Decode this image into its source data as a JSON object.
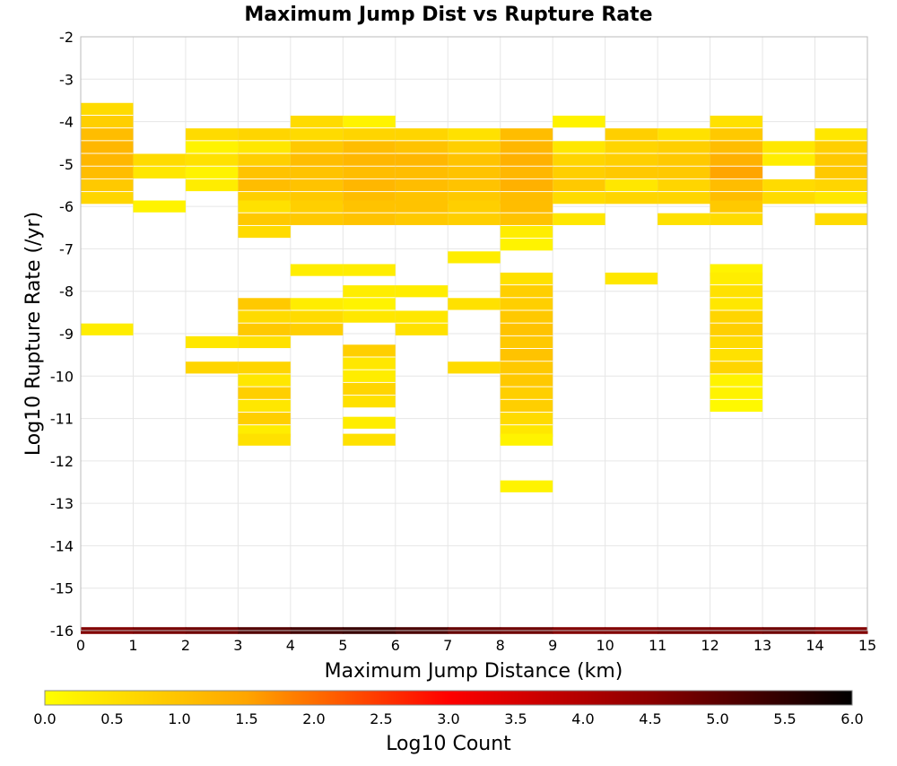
{
  "chart_data": {
    "type": "heatmap",
    "title": "Maximum Jump Dist vs Rupture Rate",
    "xlabel": "Maximum Jump Distance (km)",
    "ylabel": "Log10 Rupture Rate (/yr)",
    "xlim": [
      0,
      15
    ],
    "ylim": [
      -16,
      -2
    ],
    "x_ticks": [
      "0",
      "1",
      "2",
      "3",
      "4",
      "5",
      "6",
      "7",
      "8",
      "9",
      "10",
      "11",
      "12",
      "13",
      "14",
      "15"
    ],
    "y_ticks": [
      "-2",
      "-3",
      "-4",
      "-5",
      "-6",
      "-7",
      "-8",
      "-9",
      "-10",
      "-11",
      "-12",
      "-13",
      "-14",
      "-15",
      "-16"
    ],
    "colorbar": {
      "label": "Log10 Count",
      "range": [
        0,
        6
      ],
      "ticks": [
        "0.0",
        "0.5",
        "1.0",
        "1.5",
        "2.0",
        "2.5",
        "3.0",
        "3.5",
        "4.0",
        "4.5",
        "5.0",
        "5.5",
        "6.0"
      ],
      "colors": [
        "#ffff00",
        "#ffa500",
        "#ff0000",
        "#8b0000",
        "#000000"
      ]
    },
    "grid": true,
    "bin_width_x": 1,
    "bin_height_y": 0.28,
    "cells": [
      [
        0,
        -3.7,
        0.6
      ],
      [
        0,
        -4.0,
        0.8
      ],
      [
        0,
        -4.3,
        1.1
      ],
      [
        0,
        -4.6,
        1.2
      ],
      [
        0,
        -4.9,
        1.2
      ],
      [
        0,
        -5.2,
        1.1
      ],
      [
        0,
        -5.5,
        0.9
      ],
      [
        0,
        -5.8,
        0.7
      ],
      [
        0,
        -8.9,
        0.3
      ],
      [
        1,
        -4.9,
        0.6
      ],
      [
        1,
        -5.2,
        0.4
      ],
      [
        1,
        -6.0,
        0.2
      ],
      [
        2,
        -4.3,
        0.6
      ],
      [
        2,
        -4.6,
        0.2
      ],
      [
        2,
        -4.9,
        0.5
      ],
      [
        2,
        -5.2,
        0.2
      ],
      [
        2,
        -5.5,
        0.3
      ],
      [
        2,
        -9.2,
        0.4
      ],
      [
        2,
        -9.8,
        0.7
      ],
      [
        3,
        -4.3,
        0.7
      ],
      [
        3,
        -4.6,
        0.4
      ],
      [
        3,
        -4.9,
        0.8
      ],
      [
        3,
        -5.2,
        1.0
      ],
      [
        3,
        -5.5,
        1.1
      ],
      [
        3,
        -5.8,
        0.8
      ],
      [
        3,
        -6.0,
        0.5
      ],
      [
        3,
        -6.3,
        0.9
      ],
      [
        3,
        -6.6,
        0.6
      ],
      [
        3,
        -8.3,
        0.9
      ],
      [
        3,
        -8.6,
        0.6
      ],
      [
        3,
        -8.9,
        0.9
      ],
      [
        3,
        -9.2,
        0.5
      ],
      [
        3,
        -9.8,
        0.7
      ],
      [
        3,
        -10.1,
        0.4
      ],
      [
        3,
        -10.4,
        0.8
      ],
      [
        3,
        -10.7,
        0.4
      ],
      [
        3,
        -11.0,
        0.8
      ],
      [
        3,
        -11.3,
        0.3
      ],
      [
        3,
        -11.5,
        0.5
      ],
      [
        4,
        -4.0,
        0.6
      ],
      [
        4,
        -4.3,
        0.6
      ],
      [
        4,
        -4.6,
        0.9
      ],
      [
        4,
        -4.9,
        1.1
      ],
      [
        4,
        -5.2,
        1.0
      ],
      [
        4,
        -5.5,
        1.0
      ],
      [
        4,
        -5.8,
        0.9
      ],
      [
        4,
        -6.0,
        0.8
      ],
      [
        4,
        -6.3,
        0.9
      ],
      [
        4,
        -7.5,
        0.3
      ],
      [
        4,
        -8.3,
        0.3
      ],
      [
        4,
        -8.6,
        0.6
      ],
      [
        4,
        -8.9,
        0.8
      ],
      [
        5,
        -4.0,
        0.2
      ],
      [
        5,
        -4.3,
        0.7
      ],
      [
        5,
        -4.6,
        1.1
      ],
      [
        5,
        -4.9,
        1.2
      ],
      [
        5,
        -5.2,
        1.1
      ],
      [
        5,
        -5.5,
        1.2
      ],
      [
        5,
        -5.8,
        1.1
      ],
      [
        5,
        -6.0,
        1.0
      ],
      [
        5,
        -6.3,
        1.0
      ],
      [
        5,
        -7.5,
        0.3
      ],
      [
        5,
        -8.0,
        0.3
      ],
      [
        5,
        -8.3,
        0.2
      ],
      [
        5,
        -8.6,
        0.4
      ],
      [
        5,
        -9.4,
        0.8
      ],
      [
        5,
        -9.7,
        0.4
      ],
      [
        5,
        -10.0,
        0.3
      ],
      [
        5,
        -10.3,
        0.7
      ],
      [
        5,
        -10.6,
        0.5
      ],
      [
        5,
        -11.1,
        0.3
      ],
      [
        5,
        -11.5,
        0.5
      ],
      [
        6,
        -4.3,
        0.7
      ],
      [
        6,
        -4.6,
        1.0
      ],
      [
        6,
        -4.9,
        1.2
      ],
      [
        6,
        -5.2,
        1.1
      ],
      [
        6,
        -5.5,
        1.1
      ],
      [
        6,
        -5.8,
        1.0
      ],
      [
        6,
        -6.0,
        1.0
      ],
      [
        6,
        -6.3,
        0.9
      ],
      [
        6,
        -8.0,
        0.3
      ],
      [
        6,
        -8.6,
        0.4
      ],
      [
        6,
        -8.9,
        0.5
      ],
      [
        7,
        -4.3,
        0.5
      ],
      [
        7,
        -4.6,
        0.8
      ],
      [
        7,
        -4.9,
        1.0
      ],
      [
        7,
        -5.2,
        1.0
      ],
      [
        7,
        -5.5,
        1.0
      ],
      [
        7,
        -5.8,
        0.9
      ],
      [
        7,
        -6.0,
        0.8
      ],
      [
        7,
        -6.3,
        0.8
      ],
      [
        7,
        -7.2,
        0.3
      ],
      [
        7,
        -8.3,
        0.5
      ],
      [
        7,
        -9.8,
        0.6
      ],
      [
        8,
        -4.3,
        1.1
      ],
      [
        8,
        -4.6,
        1.2
      ],
      [
        8,
        -4.9,
        1.3
      ],
      [
        8,
        -5.2,
        1.2
      ],
      [
        8,
        -5.5,
        1.3
      ],
      [
        8,
        -5.8,
        1.1
      ],
      [
        8,
        -6.0,
        1.1
      ],
      [
        8,
        -6.3,
        1.0
      ],
      [
        8,
        -6.6,
        0.3
      ],
      [
        8,
        -6.9,
        0.2
      ],
      [
        8,
        -7.7,
        0.5
      ],
      [
        8,
        -8.0,
        0.8
      ],
      [
        8,
        -8.3,
        0.8
      ],
      [
        8,
        -8.6,
        0.9
      ],
      [
        8,
        -8.9,
        1.0
      ],
      [
        8,
        -9.2,
        0.9
      ],
      [
        8,
        -9.5,
        1.0
      ],
      [
        8,
        -9.8,
        0.9
      ],
      [
        8,
        -10.1,
        0.9
      ],
      [
        8,
        -10.4,
        0.8
      ],
      [
        8,
        -10.7,
        0.8
      ],
      [
        8,
        -11.0,
        0.6
      ],
      [
        8,
        -11.3,
        0.4
      ],
      [
        8,
        -11.5,
        0.2
      ],
      [
        8,
        -12.6,
        0.2
      ],
      [
        9,
        -4.0,
        0.2
      ],
      [
        9,
        -4.6,
        0.4
      ],
      [
        9,
        -4.9,
        0.7
      ],
      [
        9,
        -5.2,
        0.8
      ],
      [
        9,
        -5.5,
        0.9
      ],
      [
        9,
        -5.8,
        0.6
      ],
      [
        9,
        -6.3,
        0.4
      ],
      [
        10,
        -4.3,
        0.8
      ],
      [
        10,
        -4.6,
        0.7
      ],
      [
        10,
        -4.9,
        0.8
      ],
      [
        10,
        -5.2,
        0.9
      ],
      [
        10,
        -5.5,
        0.4
      ],
      [
        10,
        -5.8,
        0.7
      ],
      [
        10,
        -7.7,
        0.4
      ],
      [
        11,
        -4.3,
        0.5
      ],
      [
        11,
        -4.6,
        0.8
      ],
      [
        11,
        -4.9,
        0.9
      ],
      [
        11,
        -5.2,
        0.9
      ],
      [
        11,
        -5.5,
        0.7
      ],
      [
        11,
        -5.8,
        0.7
      ],
      [
        11,
        -6.3,
        0.5
      ],
      [
        12,
        -4.0,
        0.5
      ],
      [
        12,
        -4.3,
        0.9
      ],
      [
        12,
        -4.6,
        1.1
      ],
      [
        12,
        -4.9,
        1.3
      ],
      [
        12,
        -5.2,
        1.5
      ],
      [
        12,
        -5.5,
        1.1
      ],
      [
        12,
        -5.8,
        1.1
      ],
      [
        12,
        -6.0,
        0.9
      ],
      [
        12,
        -6.3,
        0.6
      ],
      [
        12,
        -7.5,
        0.2
      ],
      [
        12,
        -7.7,
        0.3
      ],
      [
        12,
        -8.0,
        0.5
      ],
      [
        12,
        -8.3,
        0.4
      ],
      [
        12,
        -8.6,
        0.7
      ],
      [
        12,
        -8.9,
        0.8
      ],
      [
        12,
        -9.2,
        0.6
      ],
      [
        12,
        -9.5,
        0.5
      ],
      [
        12,
        -9.8,
        0.7
      ],
      [
        12,
        -10.1,
        0.2
      ],
      [
        12,
        -10.4,
        0.2
      ],
      [
        12,
        -10.7,
        0.1
      ],
      [
        13,
        -4.6,
        0.4
      ],
      [
        13,
        -4.9,
        0.3
      ],
      [
        13,
        -5.5,
        0.6
      ],
      [
        13,
        -5.8,
        0.6
      ],
      [
        14,
        -4.3,
        0.4
      ],
      [
        14,
        -4.6,
        0.8
      ],
      [
        14,
        -4.9,
        0.9
      ],
      [
        14,
        -5.2,
        0.9
      ],
      [
        14,
        -5.5,
        0.7
      ],
      [
        14,
        -5.8,
        0.4
      ],
      [
        14,
        -6.3,
        0.6
      ]
    ],
    "bottom_band": {
      "y": -16,
      "x_values": [
        0,
        1,
        2,
        3,
        4,
        5,
        6,
        7,
        8,
        9,
        10,
        11,
        12,
        13,
        14
      ],
      "values": [
        4.6,
        4.7,
        4.8,
        5.1,
        5.3,
        5.4,
        5.2,
        4.9,
        4.8,
        4.6,
        4.6,
        4.7,
        4.7,
        4.8,
        4.6
      ]
    }
  }
}
